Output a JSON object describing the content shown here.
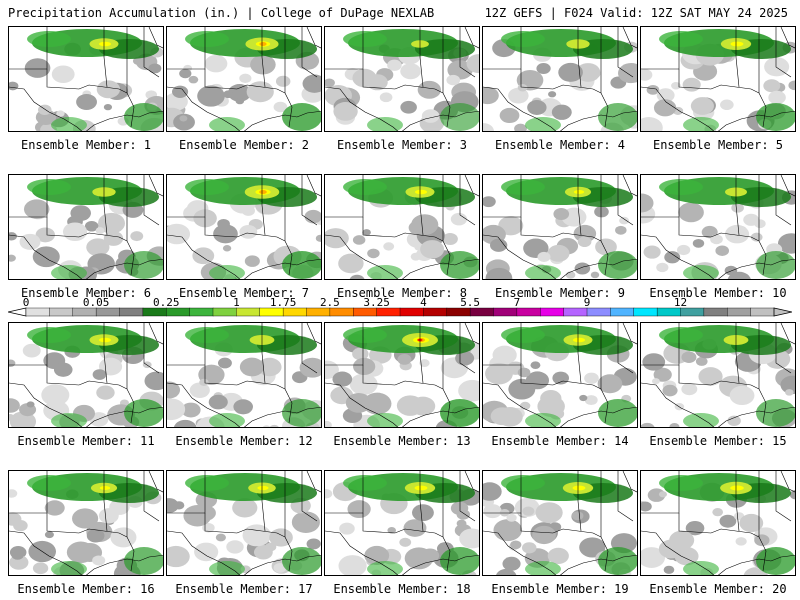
{
  "header": {
    "left": "Precipitation Accumulation (in.) | College of DuPage NEXLAB",
    "right": "12Z GEFS | F024 Valid: 12Z SAT MAY 24 2025"
  },
  "panels": [
    {
      "label": "Ensemble Member: 1",
      "intensity": 0.75
    },
    {
      "label": "Ensemble Member: 2",
      "intensity": 0.9
    },
    {
      "label": "Ensemble Member: 3",
      "intensity": 0.35
    },
    {
      "label": "Ensemble Member: 4",
      "intensity": 0.55
    },
    {
      "label": "Ensemble Member: 5",
      "intensity": 0.8
    },
    {
      "label": "Ensemble Member: 6",
      "intensity": 0.55
    },
    {
      "label": "Ensemble Member: 7",
      "intensity": 0.95
    },
    {
      "label": "Ensemble Member: 8",
      "intensity": 0.75
    },
    {
      "label": "Ensemble Member: 9",
      "intensity": 0.65
    },
    {
      "label": "Ensemble Member: 10",
      "intensity": 0.5
    },
    {
      "label": "Ensemble Member: 11",
      "intensity": 0.75
    },
    {
      "label": "Ensemble Member: 12",
      "intensity": 0.6
    },
    {
      "label": "Ensemble Member: 13",
      "intensity": 1.0
    },
    {
      "label": "Ensemble Member: 14",
      "intensity": 0.75
    },
    {
      "label": "Ensemble Member: 15",
      "intensity": 0.6
    },
    {
      "label": "Ensemble Member: 16",
      "intensity": 0.65
    },
    {
      "label": "Ensemble Member: 17",
      "intensity": 0.7
    },
    {
      "label": "Ensemble Member: 18",
      "intensity": 0.8
    },
    {
      "label": "Ensemble Member: 19",
      "intensity": 0.8
    },
    {
      "label": "Ensemble Member: 20",
      "intensity": 0.85
    }
  ],
  "colorbar": {
    "labels": [
      "0",
      "0.05",
      "0.25",
      "1",
      "1.75",
      "2.5",
      "3.25",
      "4",
      "5.5",
      "7",
      "9",
      "12"
    ],
    "colors": [
      "#e0e0e0",
      "#c8c8c8",
      "#b0b0b0",
      "#989898",
      "#808080",
      "#1a7a1a",
      "#2a9a2a",
      "#3cb43c",
      "#7fd13f",
      "#c8e632",
      "#ffff00",
      "#ffd700",
      "#ffb000",
      "#ff8c00",
      "#ff5a00",
      "#ff2000",
      "#e00000",
      "#b40000",
      "#8b0000",
      "#780040",
      "#a00078",
      "#c800a0",
      "#e600e6",
      "#b464ff",
      "#8c8cff",
      "#50b4ff",
      "#00e6ff",
      "#00c8c8",
      "#40a0a0",
      "#808080",
      "#a0a0a0",
      "#c0c0c0"
    ]
  }
}
